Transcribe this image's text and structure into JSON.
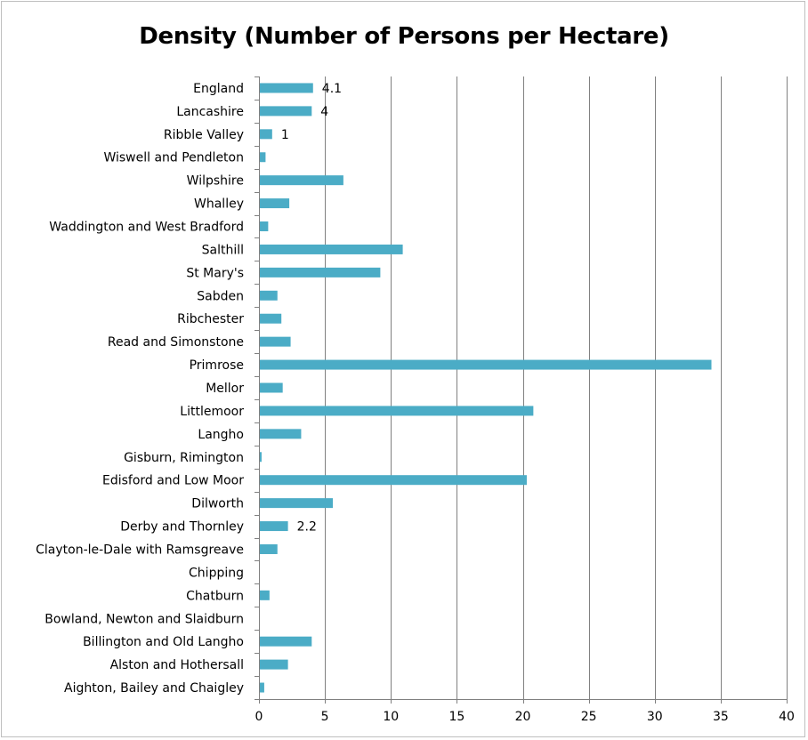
{
  "chart_data": {
    "type": "bar",
    "orientation": "horizontal",
    "title": "Density (Number of Persons per Hectare)",
    "xlabel": "",
    "ylabel": "",
    "xlim": [
      0,
      40
    ],
    "x_ticks": [
      0,
      5,
      10,
      15,
      20,
      25,
      30,
      35,
      40
    ],
    "grid": "vertical",
    "legend": "none",
    "bar_color": "#4bacc6",
    "categories": [
      "England",
      "Lancashire",
      "Ribble Valley",
      "Wiswell and Pendleton",
      "Wilpshire",
      "Whalley",
      "Waddington and West Bradford",
      "Salthill",
      "St Mary's",
      "Sabden",
      "Ribchester",
      "Read and Simonstone",
      "Primrose",
      "Mellor",
      "Littlemoor",
      "Langho",
      "Gisburn, Rimington",
      "Edisford and Low Moor",
      "Dilworth",
      "Derby and Thornley",
      "Clayton-le-Dale with Ramsgreave",
      "Chipping",
      "Chatburn",
      "Bowland, Newton and Slaidburn",
      "Billington and Old Langho",
      "Alston and Hothersall",
      "Aighton, Bailey and Chaigley"
    ],
    "values": [
      4.1,
      4,
      1,
      0.5,
      6.4,
      2.3,
      0.7,
      10.9,
      9.2,
      1.4,
      1.7,
      2.4,
      34.3,
      1.8,
      20.8,
      3.2,
      0.2,
      20.3,
      5.6,
      2.2,
      1.4,
      0.05,
      0.8,
      0.05,
      4.0,
      2.2,
      0.4
    ],
    "data_labels": [
      {
        "index": 0,
        "text": "4.1"
      },
      {
        "index": 1,
        "text": "4"
      },
      {
        "index": 2,
        "text": "1"
      },
      {
        "index": 19,
        "text": "2.2"
      }
    ]
  }
}
